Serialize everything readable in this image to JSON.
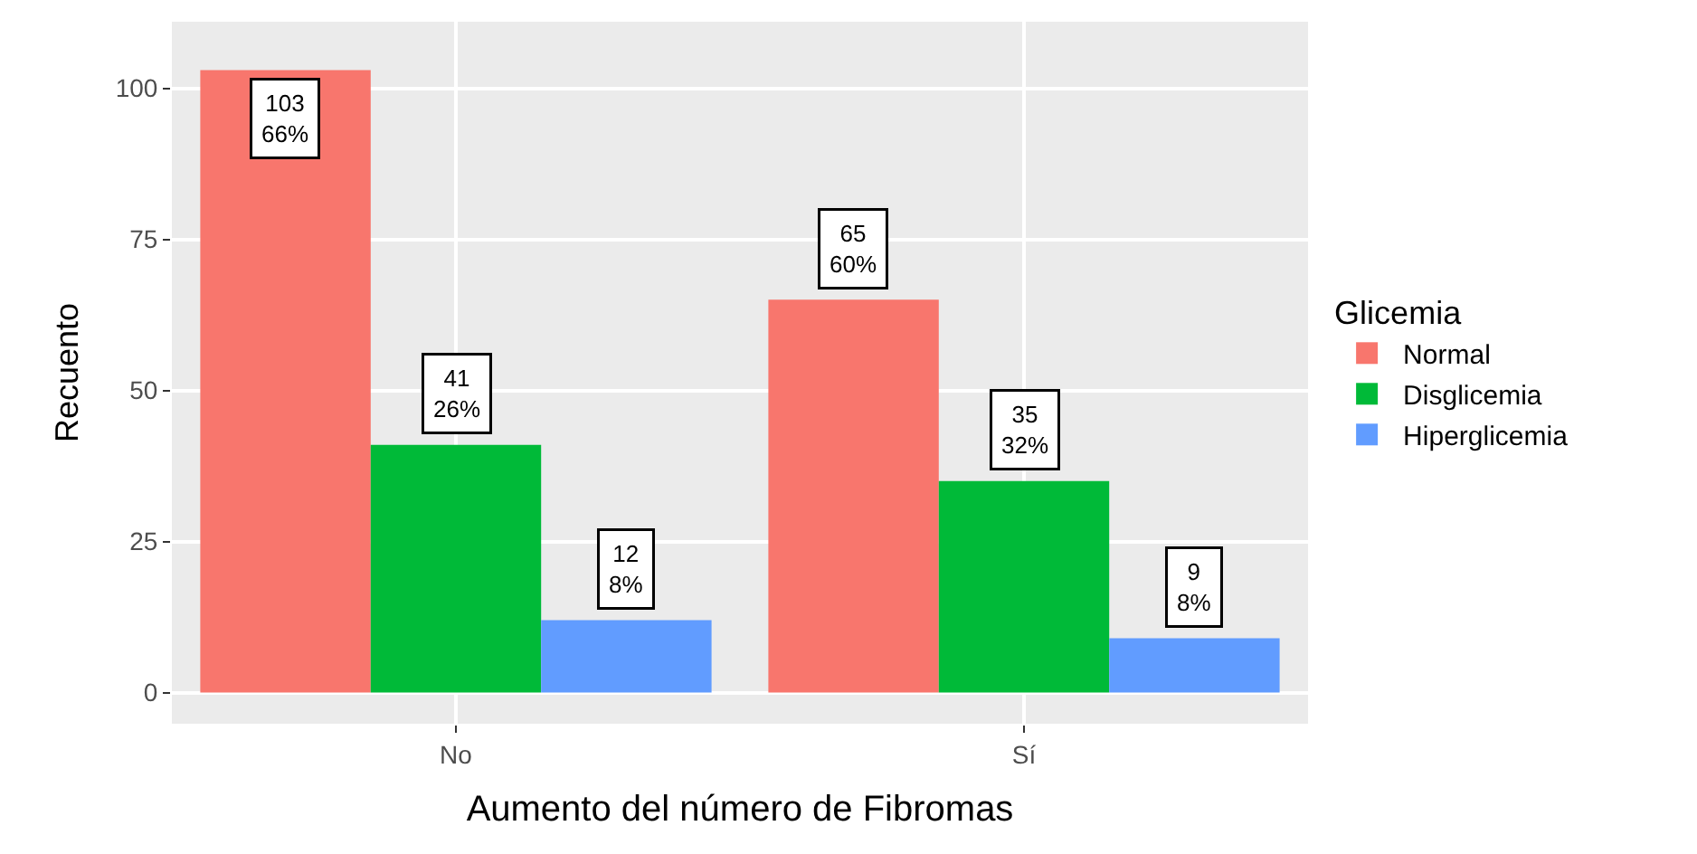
{
  "chart_data": {
    "type": "bar",
    "xlabel": "Aumento del número de Fibromas",
    "ylabel": "Recuento",
    "legend_title": "Glicemia",
    "categories": [
      "No",
      "Sí"
    ],
    "series": [
      {
        "name": "Normal",
        "color": "#f8766d",
        "values": [
          103,
          65
        ],
        "value_labels": [
          "103\n66%",
          "65\n60%"
        ]
      },
      {
        "name": "Disglicemia",
        "color": "#00ba38",
        "values": [
          41,
          35
        ],
        "value_labels": [
          "41\n26%",
          "35\n32%"
        ]
      },
      {
        "name": "Hiperglicemia",
        "color": "#619cff",
        "values": [
          12,
          9
        ],
        "value_labels": [
          "12\n8%",
          "9\n8%"
        ]
      }
    ],
    "ylim": [
      -5.15,
      111
    ],
    "yticks": [
      0,
      25,
      50,
      75,
      100
    ],
    "grid": true,
    "legend": "right"
  }
}
